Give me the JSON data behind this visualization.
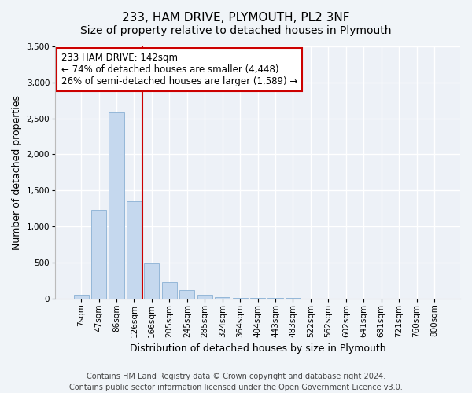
{
  "title": "233, HAM DRIVE, PLYMOUTH, PL2 3NF",
  "subtitle": "Size of property relative to detached houses in Plymouth",
  "xlabel": "Distribution of detached houses by size in Plymouth",
  "ylabel": "Number of detached properties",
  "footer_line1": "Contains HM Land Registry data © Crown copyright and database right 2024.",
  "footer_line2": "Contains public sector information licensed under the Open Government Licence v3.0.",
  "bar_labels": [
    "7sqm",
    "47sqm",
    "86sqm",
    "126sqm",
    "166sqm",
    "205sqm",
    "245sqm",
    "285sqm",
    "324sqm",
    "364sqm",
    "404sqm",
    "443sqm",
    "483sqm",
    "522sqm",
    "562sqm",
    "602sqm",
    "641sqm",
    "681sqm",
    "721sqm",
    "760sqm",
    "800sqm"
  ],
  "bar_values": [
    50,
    1230,
    2580,
    1350,
    490,
    230,
    115,
    50,
    20,
    10,
    5,
    5,
    5,
    0,
    0,
    0,
    0,
    0,
    0,
    0,
    0
  ],
  "bar_color": "#c5d8ee",
  "bar_edgecolor": "#8ab0d4",
  "vline_x": 3.45,
  "annotation_line1": "233 HAM DRIVE: 142sqm",
  "annotation_line2": "← 74% of detached houses are smaller (4,448)",
  "annotation_line3": "26% of semi-detached houses are larger (1,589) →",
  "annotation_box_facecolor": "#ffffff",
  "annotation_box_edgecolor": "#cc0000",
  "vline_color": "#cc0000",
  "ylim": [
    0,
    3500
  ],
  "yticks": [
    0,
    500,
    1000,
    1500,
    2000,
    2500,
    3000,
    3500
  ],
  "background_color": "#f0f4f8",
  "plot_background": "#edf1f7",
  "grid_color": "#ffffff",
  "title_fontsize": 11,
  "subtitle_fontsize": 10,
  "axis_label_fontsize": 9,
  "tick_fontsize": 7.5,
  "annotation_fontsize": 8.5,
  "footer_fontsize": 7
}
